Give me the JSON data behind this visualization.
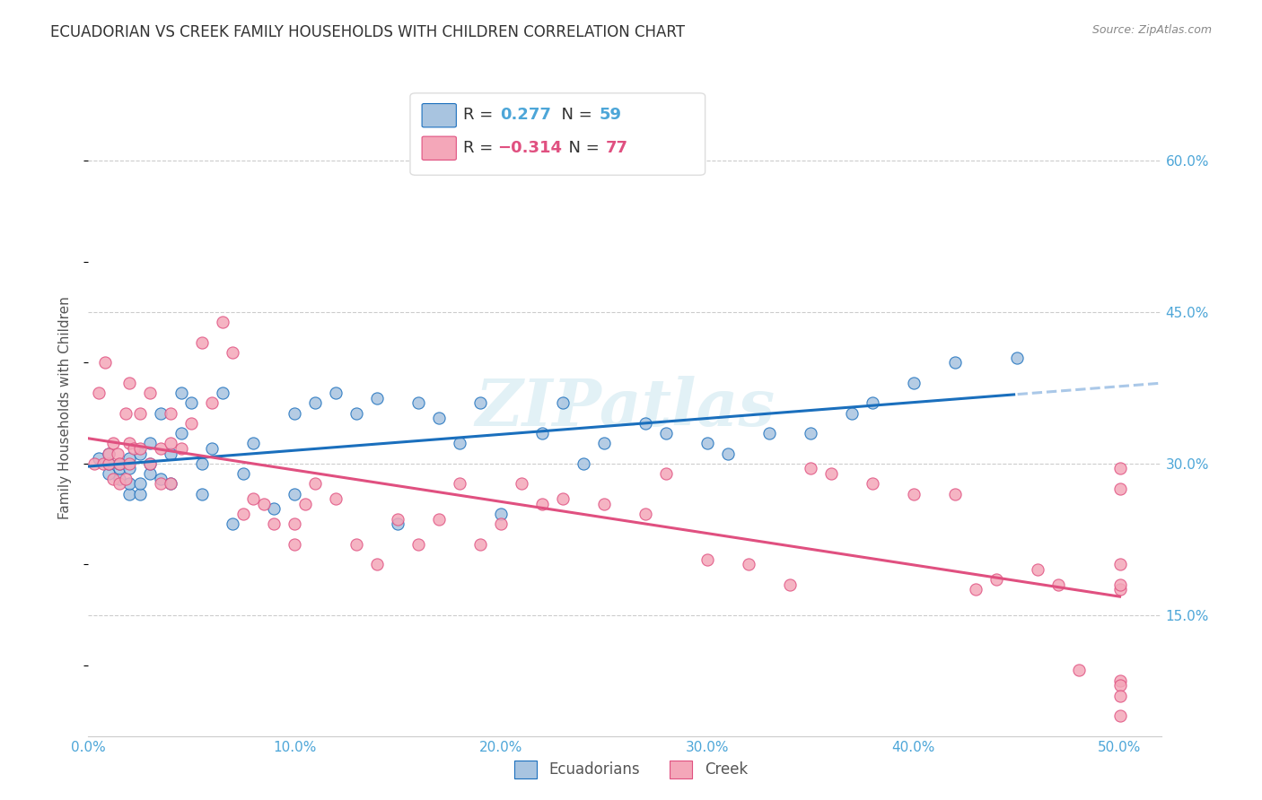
{
  "title": "ECUADORIAN VS CREEK FAMILY HOUSEHOLDS WITH CHILDREN CORRELATION CHART",
  "source": "Source: ZipAtlas.com",
  "ylabel": "Family Households with Children",
  "x_ticks": [
    "0.0%",
    "10.0%",
    "20.0%",
    "30.0%",
    "40.0%",
    "50.0%"
  ],
  "x_tick_vals": [
    0.0,
    0.1,
    0.2,
    0.3,
    0.4,
    0.5
  ],
  "y_ticks_right": [
    "15.0%",
    "30.0%",
    "45.0%",
    "60.0%"
  ],
  "y_tick_vals": [
    0.15,
    0.3,
    0.45,
    0.6
  ],
  "xlim": [
    0.0,
    0.52
  ],
  "ylim": [
    0.03,
    0.68
  ],
  "ecuadorian_color": "#a8c4e0",
  "creek_color": "#f4a7b9",
  "line_blue": "#1a6fbd",
  "line_pink": "#e05080",
  "line_dash_blue": "#aac8e8",
  "background_color": "#ffffff",
  "grid_color": "#cccccc",
  "watermark_text": "ZIPatlas",
  "watermark_color": "#d0e8f0",
  "title_fontsize": 12,
  "tick_label_color": "#4da6d8",
  "ecu_x": [
    0.005,
    0.01,
    0.01,
    0.01,
    0.015,
    0.015,
    0.015,
    0.02,
    0.02,
    0.02,
    0.02,
    0.025,
    0.025,
    0.025,
    0.03,
    0.03,
    0.03,
    0.035,
    0.035,
    0.04,
    0.04,
    0.045,
    0.045,
    0.05,
    0.055,
    0.055,
    0.06,
    0.065,
    0.07,
    0.075,
    0.08,
    0.09,
    0.1,
    0.1,
    0.11,
    0.12,
    0.13,
    0.14,
    0.15,
    0.16,
    0.17,
    0.18,
    0.19,
    0.2,
    0.22,
    0.23,
    0.24,
    0.25,
    0.27,
    0.28,
    0.3,
    0.31,
    0.33,
    0.35,
    0.37,
    0.38,
    0.4,
    0.42,
    0.45
  ],
  "ecu_y": [
    0.305,
    0.29,
    0.3,
    0.31,
    0.285,
    0.295,
    0.3,
    0.27,
    0.28,
    0.295,
    0.305,
    0.27,
    0.28,
    0.31,
    0.29,
    0.3,
    0.32,
    0.285,
    0.35,
    0.28,
    0.31,
    0.33,
    0.37,
    0.36,
    0.27,
    0.3,
    0.315,
    0.37,
    0.24,
    0.29,
    0.32,
    0.255,
    0.27,
    0.35,
    0.36,
    0.37,
    0.35,
    0.365,
    0.24,
    0.36,
    0.345,
    0.32,
    0.36,
    0.25,
    0.33,
    0.36,
    0.3,
    0.32,
    0.34,
    0.33,
    0.32,
    0.31,
    0.33,
    0.33,
    0.35,
    0.36,
    0.38,
    0.4,
    0.405
  ],
  "creek_x": [
    0.003,
    0.005,
    0.007,
    0.008,
    0.01,
    0.01,
    0.012,
    0.012,
    0.014,
    0.015,
    0.015,
    0.018,
    0.018,
    0.02,
    0.02,
    0.02,
    0.022,
    0.025,
    0.025,
    0.03,
    0.03,
    0.035,
    0.035,
    0.04,
    0.04,
    0.04,
    0.045,
    0.05,
    0.055,
    0.06,
    0.065,
    0.07,
    0.075,
    0.08,
    0.085,
    0.09,
    0.1,
    0.1,
    0.105,
    0.11,
    0.12,
    0.13,
    0.14,
    0.15,
    0.16,
    0.17,
    0.18,
    0.19,
    0.2,
    0.21,
    0.22,
    0.23,
    0.25,
    0.27,
    0.28,
    0.3,
    0.32,
    0.34,
    0.35,
    0.36,
    0.38,
    0.4,
    0.42,
    0.43,
    0.44,
    0.46,
    0.47,
    0.48,
    0.5,
    0.5,
    0.5,
    0.5,
    0.5,
    0.5,
    0.5,
    0.5,
    0.5
  ],
  "creek_y": [
    0.3,
    0.37,
    0.3,
    0.4,
    0.3,
    0.31,
    0.285,
    0.32,
    0.31,
    0.3,
    0.28,
    0.285,
    0.35,
    0.3,
    0.32,
    0.38,
    0.315,
    0.315,
    0.35,
    0.3,
    0.37,
    0.28,
    0.315,
    0.28,
    0.32,
    0.35,
    0.315,
    0.34,
    0.42,
    0.36,
    0.44,
    0.41,
    0.25,
    0.265,
    0.26,
    0.24,
    0.22,
    0.24,
    0.26,
    0.28,
    0.265,
    0.22,
    0.2,
    0.245,
    0.22,
    0.245,
    0.28,
    0.22,
    0.24,
    0.28,
    0.26,
    0.265,
    0.26,
    0.25,
    0.29,
    0.205,
    0.2,
    0.18,
    0.295,
    0.29,
    0.28,
    0.27,
    0.27,
    0.175,
    0.185,
    0.195,
    0.18,
    0.095,
    0.085,
    0.175,
    0.275,
    0.2,
    0.295,
    0.18,
    0.08,
    0.07,
    0.05
  ]
}
